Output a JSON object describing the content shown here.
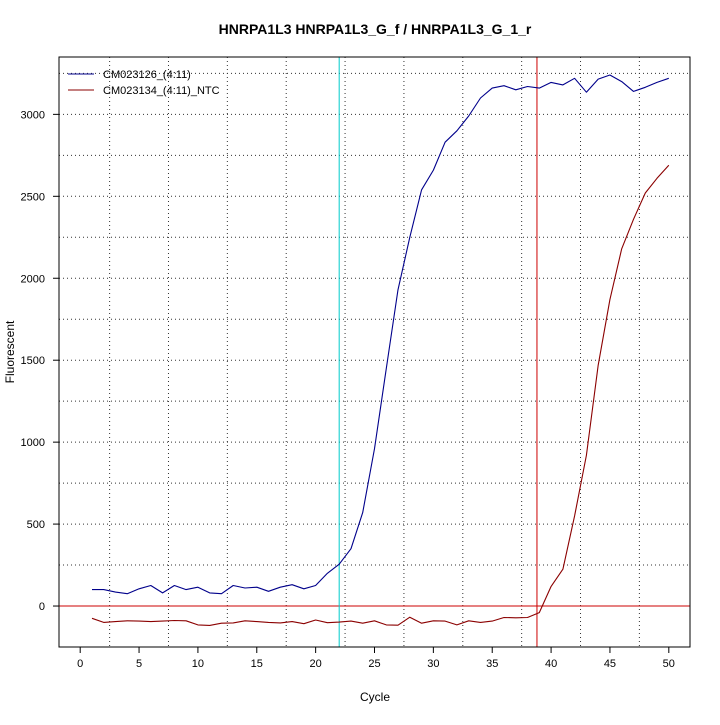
{
  "chart_data": {
    "type": "line",
    "title": "HNRPA1L3  HNRPA1L3_G_f / HNRPA1L3_G_1_r",
    "xlabel": "Cycle",
    "ylabel": "Fluorescent",
    "xlim": [
      -1.8,
      51.8
    ],
    "ylim": [
      -250,
      3350
    ],
    "x_ticks": [
      0,
      5,
      10,
      15,
      20,
      25,
      30,
      35,
      40,
      45,
      50
    ],
    "y_ticks": [
      0,
      500,
      1000,
      1500,
      2000,
      2500,
      3000
    ],
    "grid": "dotted",
    "legend_position": "top-left",
    "threshold": 0,
    "threshold_color": "#cc0000",
    "vertical_lines": [
      {
        "x": 22.0,
        "color": "#00cccc"
      },
      {
        "x": 38.8,
        "color": "#cc0000"
      }
    ],
    "series": [
      {
        "name": "CM023126_(4:11)",
        "color": "#00008b",
        "x": [
          1,
          2,
          3,
          4,
          5,
          6,
          7,
          8,
          9,
          10,
          11,
          12,
          13,
          14,
          15,
          16,
          17,
          18,
          19,
          20,
          21,
          22,
          23,
          24,
          25,
          26,
          27,
          28,
          29,
          30,
          31,
          32,
          33,
          34,
          35,
          36,
          37,
          38,
          39,
          40,
          41,
          42,
          43,
          44,
          45,
          46,
          47,
          48,
          49,
          50
        ],
        "values": [
          100,
          100,
          85,
          75,
          105,
          125,
          80,
          125,
          100,
          115,
          80,
          75,
          125,
          110,
          115,
          90,
          115,
          130,
          105,
          125,
          200,
          255,
          350,
          570,
          960,
          1450,
          1930,
          2250,
          2540,
          2660,
          2830,
          2900,
          2990,
          3100,
          3160,
          3175,
          3150,
          3170,
          3160,
          3195,
          3180,
          3220,
          3135,
          3215,
          3240,
          3200,
          3140,
          3165,
          3195,
          3220
        ]
      },
      {
        "name": "CM023134_(4:11)_NTC",
        "color": "#8b0000",
        "x": [
          1,
          2,
          3,
          4,
          5,
          6,
          7,
          8,
          9,
          10,
          11,
          12,
          13,
          14,
          15,
          16,
          17,
          18,
          19,
          20,
          21,
          22,
          23,
          24,
          25,
          26,
          27,
          28,
          29,
          30,
          31,
          32,
          33,
          34,
          35,
          36,
          37,
          38,
          39,
          40,
          41,
          42,
          43,
          44,
          45,
          46,
          47,
          48,
          49,
          50
        ],
        "values": [
          -75,
          -100,
          -95,
          -90,
          -92,
          -95,
          -92,
          -88,
          -90,
          -115,
          -118,
          -105,
          -103,
          -90,
          -95,
          -100,
          -103,
          -95,
          -108,
          -85,
          -102,
          -98,
          -92,
          -105,
          -90,
          -115,
          -117,
          -68,
          -105,
          -90,
          -92,
          -115,
          -90,
          -100,
          -92,
          -70,
          -72,
          -70,
          -40,
          120,
          225,
          550,
          920,
          1470,
          1870,
          2180,
          2360,
          2520,
          2610,
          2690
        ]
      }
    ]
  }
}
